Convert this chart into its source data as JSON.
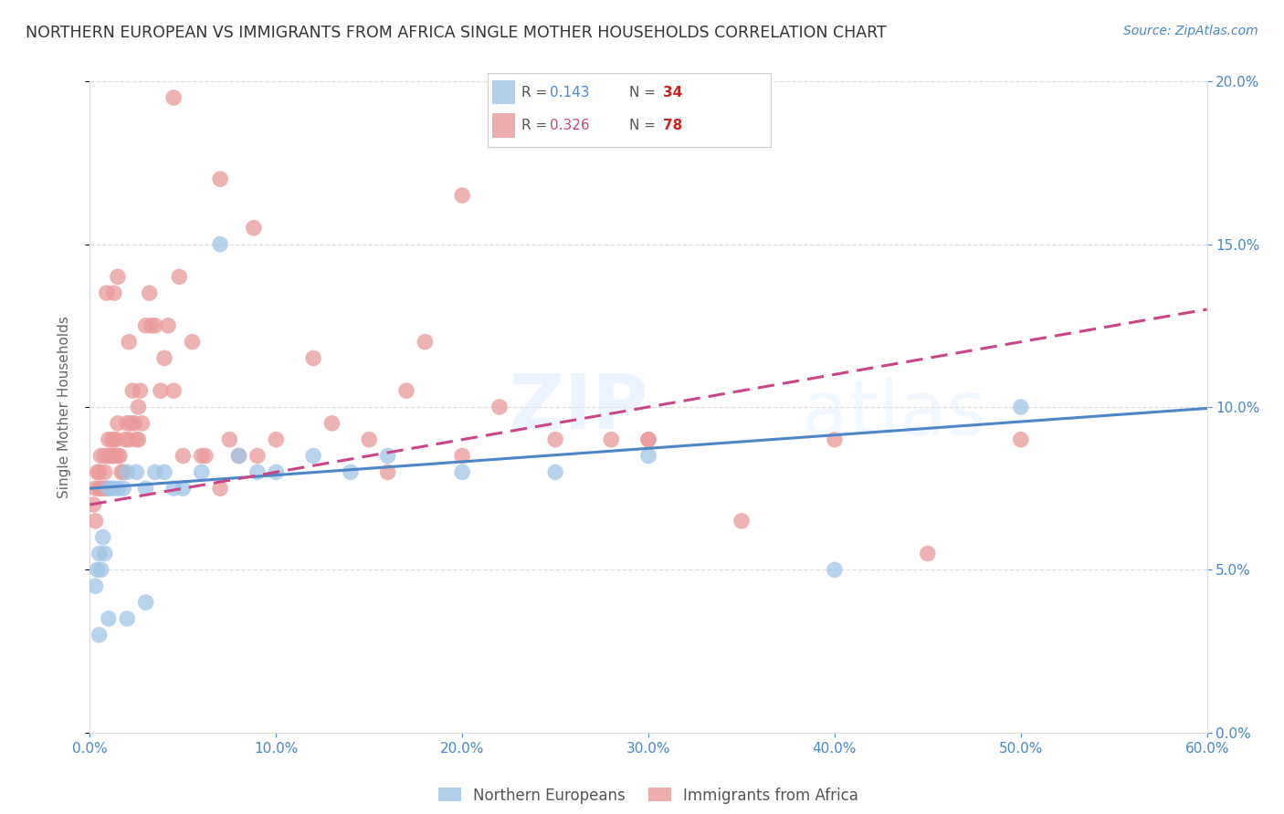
{
  "title": "NORTHERN EUROPEAN VS IMMIGRANTS FROM AFRICA SINGLE MOTHER HOUSEHOLDS CORRELATION CHART",
  "source": "Source: ZipAtlas.com",
  "xlabel_ticks": [
    "0.0%",
    "10.0%",
    "20.0%",
    "30.0%",
    "40.0%",
    "50.0%",
    "60.0%"
  ],
  "xlabel_vals": [
    0,
    10,
    20,
    30,
    40,
    50,
    60
  ],
  "ylabel_ticks": [
    "0.0%",
    "5.0%",
    "10.0%",
    "15.0%",
    "20.0%"
  ],
  "ylabel_vals": [
    0,
    5,
    10,
    15,
    20
  ],
  "xlim": [
    0,
    60
  ],
  "ylim": [
    0,
    20
  ],
  "blue_R": 0.143,
  "blue_N": 34,
  "pink_R": 0.326,
  "pink_N": 78,
  "blue_color": "#9fc5e8",
  "pink_color": "#ea9999",
  "blue_line_color": "#4a86c8",
  "pink_line_color": "#cc4488",
  "grid_color": "#dddddd",
  "blue_intercept": 7.5,
  "blue_slope": 0.041,
  "pink_intercept": 7.0,
  "pink_slope": 0.1,
  "blue_scatter_x": [
    0.3,
    0.4,
    0.5,
    0.6,
    0.7,
    0.8,
    1.0,
    1.2,
    1.5,
    1.8,
    2.0,
    2.5,
    3.0,
    3.5,
    4.0,
    4.5,
    5.0,
    6.0,
    7.0,
    8.0,
    9.0,
    10.0,
    12.0,
    14.0,
    16.0,
    20.0,
    25.0,
    30.0,
    40.0,
    50.0,
    0.5,
    1.0,
    2.0,
    3.0
  ],
  "blue_scatter_y": [
    4.5,
    5.0,
    5.5,
    5.0,
    6.0,
    5.5,
    7.5,
    7.5,
    7.5,
    7.5,
    8.0,
    8.0,
    7.5,
    8.0,
    8.0,
    7.5,
    7.5,
    8.0,
    15.0,
    8.5,
    8.0,
    8.0,
    8.5,
    8.0,
    8.5,
    8.0,
    8.0,
    8.5,
    5.0,
    10.0,
    3.0,
    3.5,
    3.5,
    4.0
  ],
  "pink_scatter_x": [
    0.2,
    0.3,
    0.3,
    0.4,
    0.5,
    0.5,
    0.6,
    0.6,
    0.7,
    0.8,
    0.8,
    0.9,
    1.0,
    1.0,
    1.1,
    1.2,
    1.2,
    1.3,
    1.3,
    1.4,
    1.5,
    1.5,
    1.6,
    1.7,
    1.8,
    1.9,
    2.0,
    2.1,
    2.2,
    2.3,
    2.4,
    2.5,
    2.6,
    2.7,
    2.8,
    3.0,
    3.2,
    3.5,
    4.0,
    4.5,
    5.0,
    5.5,
    6.0,
    7.0,
    8.0,
    9.0,
    10.0,
    12.0,
    13.0,
    15.0,
    16.0,
    17.0,
    18.0,
    20.0,
    22.0,
    25.0,
    28.0,
    30.0,
    35.0,
    40.0,
    45.0,
    50.0,
    3.8,
    4.2,
    1.3,
    0.9,
    1.5,
    2.1,
    2.6,
    3.3,
    4.8,
    6.2,
    7.5,
    8.8,
    30.0,
    4.5,
    7.0,
    20.0
  ],
  "pink_scatter_y": [
    7.0,
    6.5,
    7.5,
    8.0,
    8.0,
    7.5,
    7.5,
    8.5,
    7.5,
    8.0,
    8.5,
    7.5,
    8.5,
    9.0,
    8.5,
    8.5,
    9.0,
    8.5,
    9.0,
    9.0,
    9.5,
    8.5,
    8.5,
    8.0,
    8.0,
    9.0,
    9.5,
    9.0,
    9.5,
    10.5,
    9.5,
    9.0,
    9.0,
    10.5,
    9.5,
    12.5,
    13.5,
    12.5,
    11.5,
    10.5,
    8.5,
    12.0,
    8.5,
    7.5,
    8.5,
    8.5,
    9.0,
    11.5,
    9.5,
    9.0,
    8.0,
    10.5,
    12.0,
    8.5,
    10.0,
    9.0,
    9.0,
    9.0,
    6.5,
    9.0,
    5.5,
    9.0,
    10.5,
    12.5,
    13.5,
    13.5,
    14.0,
    12.0,
    10.0,
    12.5,
    14.0,
    8.5,
    9.0,
    15.5,
    9.0,
    19.5,
    17.0,
    16.5
  ]
}
